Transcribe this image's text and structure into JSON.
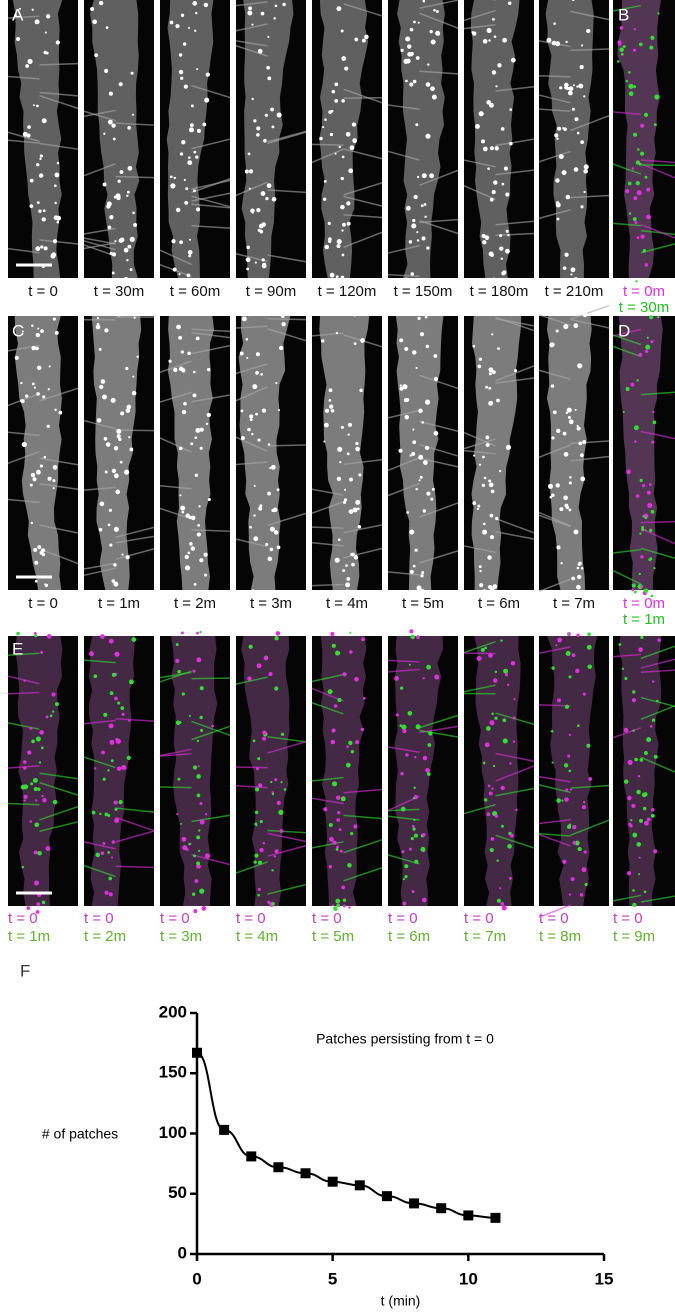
{
  "row_a": {
    "letters": [
      "A",
      "B"
    ],
    "labels": [
      "t = 0",
      "t = 30m",
      "t = 60m",
      "t = 90m",
      "t = 120m",
      "t = 150m",
      "t = 180m",
      "t = 210m"
    ],
    "overlay_labels": [
      "t = 0m",
      "t = 30m"
    ]
  },
  "row_c": {
    "letters": [
      "C",
      "D"
    ],
    "labels": [
      "t = 0",
      "t = 1m",
      "t = 2m",
      "t = 3m",
      "t = 4m",
      "t = 5m",
      "t = 6m",
      "t = 7m"
    ],
    "overlay_labels": [
      "t = 0m",
      "t = 1m"
    ]
  },
  "row_e": {
    "letter": "E",
    "labels": [
      [
        "t = 0",
        "t = 1m"
      ],
      [
        "t = 0",
        "t = 2m"
      ],
      [
        "t = 0",
        "t = 3m"
      ],
      [
        "t = 0",
        "t = 4m"
      ],
      [
        "t = 0",
        "t = 5m"
      ],
      [
        "t = 0",
        "t = 6m"
      ],
      [
        "t = 0",
        "t = 7m"
      ],
      [
        "t = 0",
        "t = 8m"
      ],
      [
        "t = 0",
        "t = 9m"
      ]
    ]
  },
  "panel_f": {
    "letter": "F"
  },
  "chart_data": {
    "type": "scatter",
    "title": "Patches persisting from t = 0",
    "x_label": "t (min)",
    "y_label": "# of patches",
    "x": [
      0,
      1,
      2,
      3,
      4,
      5,
      6,
      7,
      8,
      9,
      10,
      11
    ],
    "values": [
      167,
      103,
      81,
      72,
      67,
      60,
      57,
      48,
      42,
      38,
      32,
      30
    ],
    "color": "#000000",
    "marker": "square",
    "fit_line": true,
    "xlim": [
      0,
      15
    ],
    "ylim": [
      0,
      200
    ],
    "xticks": [
      0,
      5,
      10,
      15
    ],
    "yticks": [
      0,
      50,
      100,
      150,
      200
    ]
  }
}
